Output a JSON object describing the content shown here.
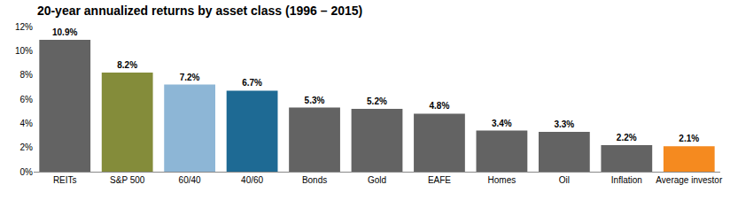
{
  "chart_data": {
    "type": "bar",
    "title": "20-year annualized returns by asset class (1996 – 2015)",
    "categories": [
      "REITs",
      "S&P 500",
      "60/40",
      "40/60",
      "Bonds",
      "Gold",
      "EAFE",
      "Homes",
      "Oil",
      "Inflation",
      "Average investor"
    ],
    "values": [
      10.9,
      8.2,
      7.2,
      6.7,
      5.3,
      5.2,
      4.8,
      3.4,
      3.3,
      2.2,
      2.1
    ],
    "value_labels": [
      "10.9%",
      "8.2%",
      "7.2%",
      "6.7%",
      "5.3%",
      "5.2%",
      "4.8%",
      "3.4%",
      "3.3%",
      "2.2%",
      "2.1%"
    ],
    "colors": [
      "#636363",
      "#848c3a",
      "#8db6d6",
      "#1e6a94",
      "#636363",
      "#636363",
      "#636363",
      "#636363",
      "#636363",
      "#636363",
      "#f58a1f"
    ],
    "data_labels": true,
    "grid": false,
    "ylim": [
      0,
      12
    ],
    "yticks": [
      {
        "value": 0,
        "label": "0%"
      },
      {
        "value": 2,
        "label": "2%"
      },
      {
        "value": 4,
        "label": "4%"
      },
      {
        "value": 6,
        "label": "6%"
      },
      {
        "value": 8,
        "label": "8%"
      },
      {
        "value": 10,
        "label": "10%"
      },
      {
        "value": 12,
        "label": "12%"
      }
    ]
  }
}
